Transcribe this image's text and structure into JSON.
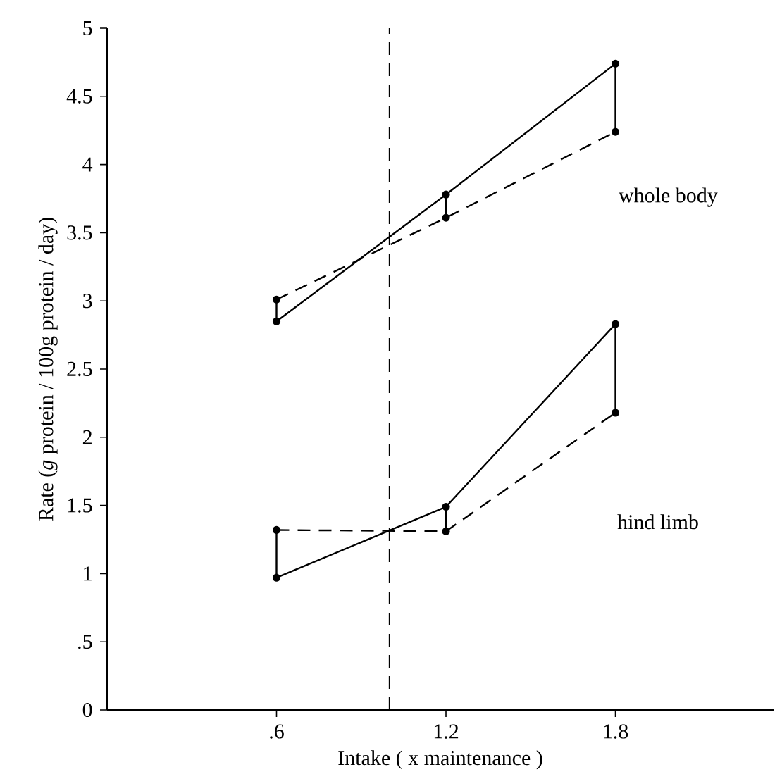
{
  "chart_data": {
    "type": "line",
    "xlabel": "Intake ( x maintenance )",
    "ylabel": "Rate (*g* protein / 100g protein / day)",
    "xlim": [
      0,
      2.36
    ],
    "xticks": [
      {
        "value": 0.6,
        "label": ".6"
      },
      1.2,
      1.8
    ],
    "ylim": [
      0,
      5
    ],
    "yticks": [
      0,
      {
        "value": 0.5,
        "label": ".5"
      },
      1,
      1.5,
      2,
      2.5,
      3,
      3.5,
      4,
      4.5,
      5
    ],
    "marker": "circle",
    "series": [
      {
        "color": "#000000",
        "line_style": "solid",
        "x": [
          0.6,
          1.2,
          1.8
        ],
        "values": [
          2.85,
          3.78,
          4.74
        ]
      },
      {
        "color": "#000000",
        "line_style": "dashed",
        "x": [
          0.6,
          1.2,
          1.8
        ],
        "values": [
          3.01,
          3.61,
          4.24
        ]
      },
      {
        "color": "#000000",
        "line_style": "solid",
        "x": [
          0.6,
          1.2,
          1.8
        ],
        "values": [
          0.97,
          1.49,
          2.83
        ]
      },
      {
        "color": "#000000",
        "line_style": "dashed",
        "x": [
          0.6,
          1.2,
          1.8
        ],
        "values": [
          1.32,
          1.31,
          2.18
        ]
      },
      {
        "color": "#000000",
        "line_style": "solid",
        "marker": "none",
        "x": [
          0.6,
          0.6
        ],
        "values": [
          2.85,
          3.01
        ]
      },
      {
        "color": "#000000",
        "line_style": "solid",
        "marker": "none",
        "x": [
          1.2,
          1.2
        ],
        "values": [
          3.78,
          3.61
        ]
      },
      {
        "color": "#000000",
        "line_style": "solid",
        "marker": "none",
        "x": [
          1.8,
          1.8
        ],
        "values": [
          4.74,
          4.24
        ]
      },
      {
        "color": "#000000",
        "line_style": "solid",
        "marker": "none",
        "x": [
          0.6,
          0.6
        ],
        "values": [
          0.97,
          1.32
        ]
      },
      {
        "color": "#000000",
        "line_style": "solid",
        "marker": "none",
        "x": [
          1.2,
          1.2
        ],
        "values": [
          1.49,
          1.31
        ]
      },
      {
        "color": "#000000",
        "line_style": "solid",
        "marker": "none",
        "x": [
          1.8,
          1.8
        ],
        "values": [
          2.83,
          2.18
        ]
      }
    ],
    "ref_lines": [
      {
        "axis": "x",
        "value": 1.0,
        "line_style": "dashed",
        "color": "#000000"
      }
    ],
    "annotations": [
      "whole body",
      "hind limb"
    ]
  }
}
